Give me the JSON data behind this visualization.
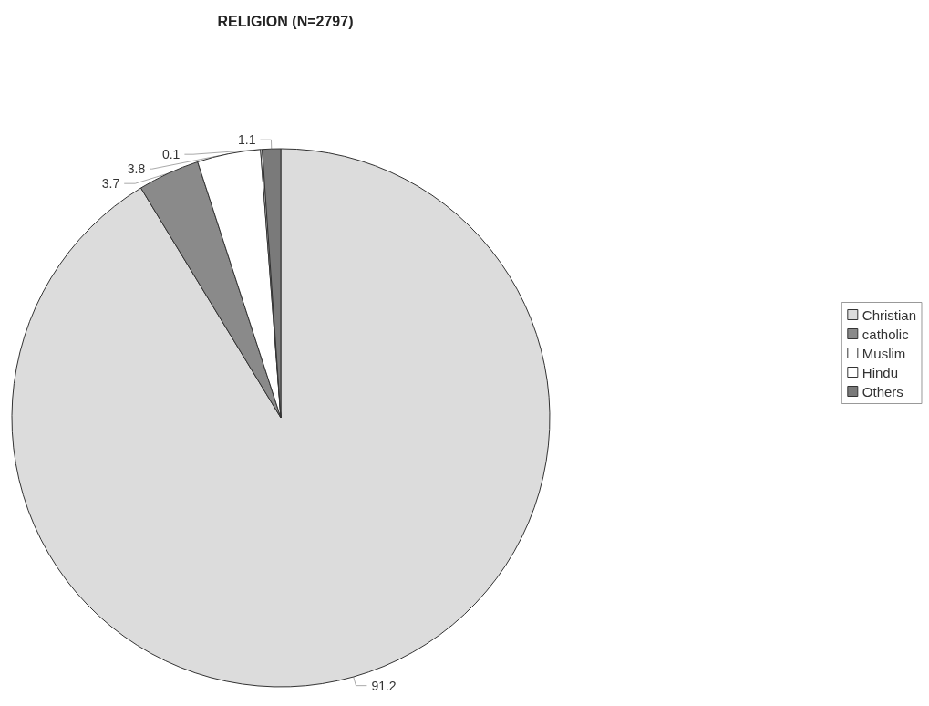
{
  "chart_data": {
    "type": "pie",
    "title": "RELIGION (N=2797)",
    "categories": [
      "Christian",
      "catholic",
      "Muslim",
      "Hindu",
      "Others"
    ],
    "values": [
      91.2,
      3.7,
      3.8,
      0.1,
      1.1
    ],
    "colors": [
      "#dcdcdc",
      "#8a8a8a",
      "#ffffff",
      "#ffffff",
      "#7a7a7a"
    ],
    "legend": "right",
    "data_labels": true
  }
}
